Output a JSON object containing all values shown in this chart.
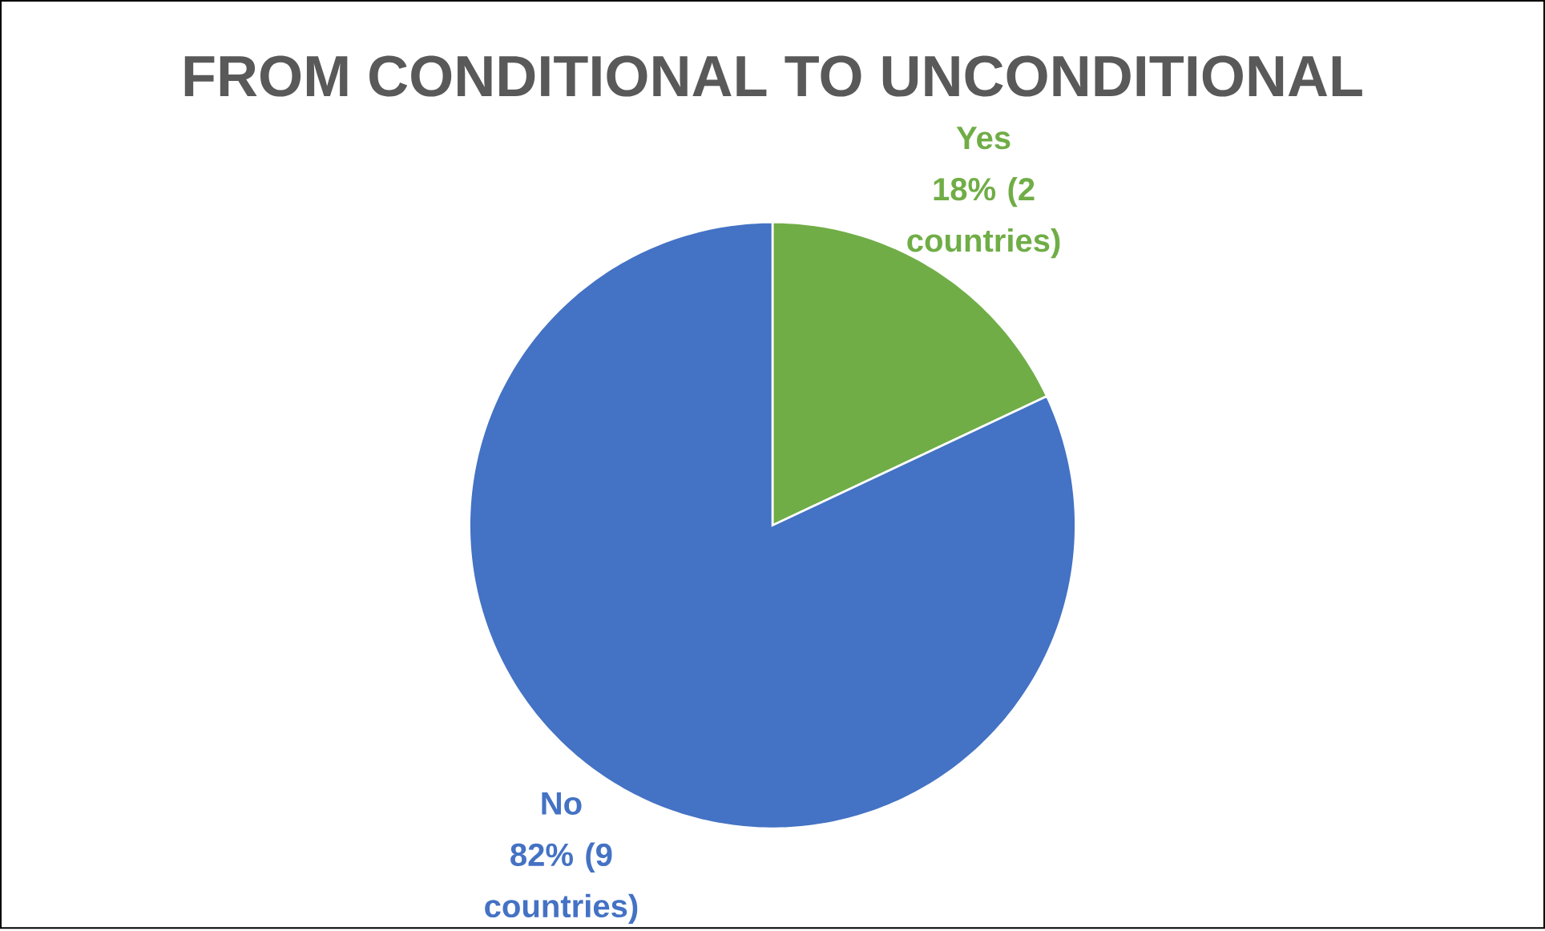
{
  "chart_data": {
    "type": "pie",
    "title": "FROM CONDITIONAL TO UNCONDITIONAL",
    "categories": [
      "Yes",
      "No"
    ],
    "values": [
      18,
      82
    ],
    "colors": [
      "#70ad47",
      "#4472c4"
    ],
    "value_labels": [
      "18% (2 countries)",
      "82% (9 countries)"
    ]
  }
}
